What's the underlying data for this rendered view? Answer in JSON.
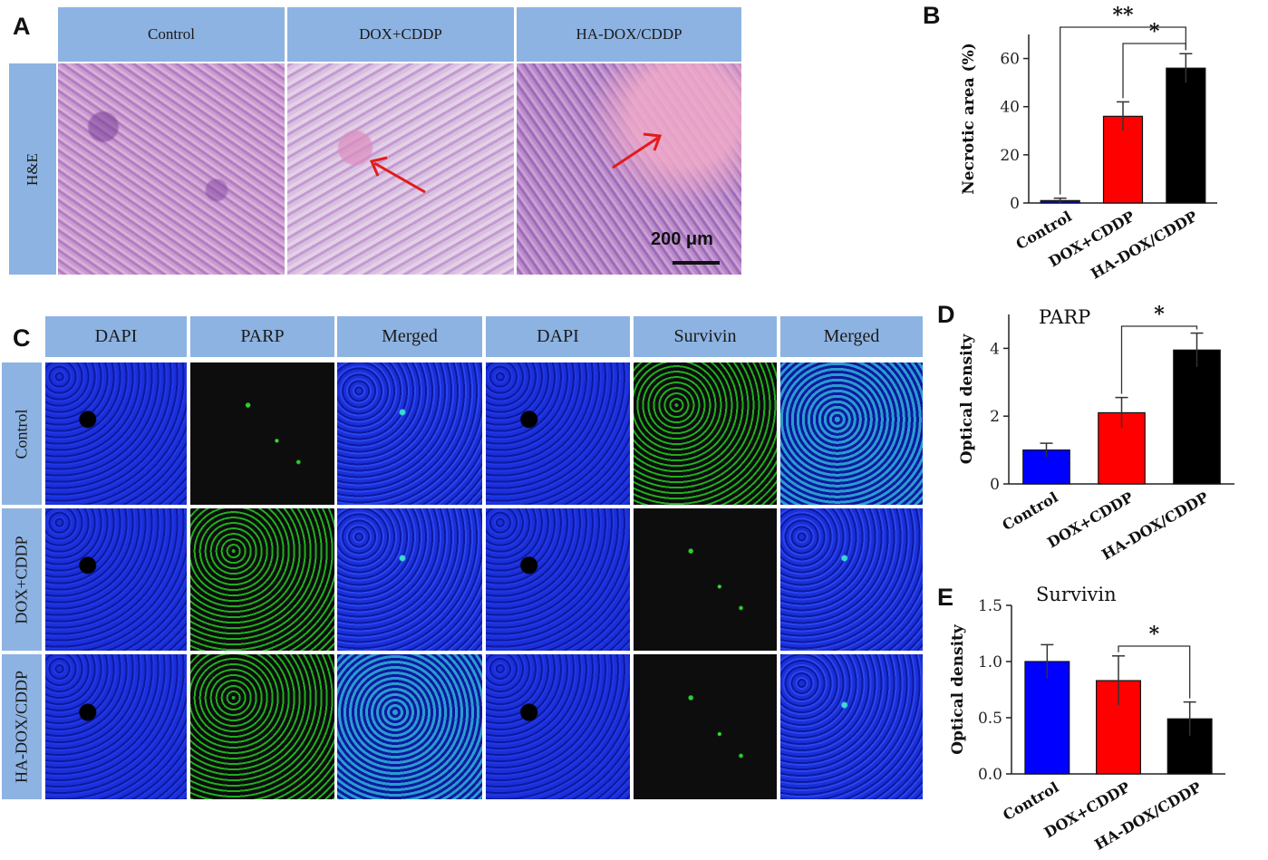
{
  "panel_a": {
    "letter": "A",
    "columns": [
      "Control",
      "DOX+CDDP",
      "HA-DOX/CDDP"
    ],
    "row_label": "H&E",
    "scale_bar": "200 μm"
  },
  "panel_c": {
    "letter": "C",
    "columns": [
      "DAPI",
      "PARP",
      "Merged",
      "DAPI",
      "Survivin",
      "Merged"
    ],
    "rows": [
      "Control",
      "DOX+CDDP",
      "HA-DOX/CDDP"
    ]
  },
  "colors": {
    "control": "#0000ff",
    "dox_cddp": "#ff0000",
    "ha_dox_cddp": "#000000",
    "header_bg": "#8db3e2"
  },
  "chart_data": [
    {
      "panel": "B",
      "type": "bar",
      "title": "",
      "categories": [
        "Control",
        "DOX+CDDP",
        "HA-DOX/CDDP"
      ],
      "values": [
        1,
        36,
        56
      ],
      "errors": [
        1,
        6,
        6
      ],
      "ylabel": "Necrotic area (%)",
      "xlabel": "",
      "ylim": [
        0,
        70
      ],
      "yticks": [
        "0",
        "20",
        "40",
        "60"
      ],
      "significance": [
        {
          "from": 0,
          "to": 2,
          "label": "**"
        },
        {
          "from": 1,
          "to": 2,
          "label": "*"
        }
      ]
    },
    {
      "panel": "D",
      "type": "bar",
      "title": "PARP",
      "categories": [
        "Control",
        "DOX+CDDP",
        "HA-DOX/CDDP"
      ],
      "values": [
        1.0,
        2.1,
        3.95
      ],
      "errors": [
        0.2,
        0.45,
        0.5
      ],
      "ylabel": "Optical density",
      "xlabel": "",
      "ylim": [
        0,
        5
      ],
      "yticks": [
        "0",
        "2",
        "4"
      ],
      "significance": [
        {
          "from": 1,
          "to": 2,
          "label": "*"
        }
      ]
    },
    {
      "panel": "E",
      "type": "bar",
      "title": "Survivin",
      "categories": [
        "Control",
        "DOX+CDDP",
        "HA-DOX/CDDP"
      ],
      "values": [
        1.0,
        0.83,
        0.49
      ],
      "errors": [
        0.15,
        0.22,
        0.15
      ],
      "ylabel": "Optical density",
      "xlabel": "",
      "ylim": [
        0,
        1.5
      ],
      "yticks": [
        "0.0",
        "0.5",
        "1.0",
        "1.5"
      ],
      "significance": [
        {
          "from": 1,
          "to": 2,
          "label": "*"
        }
      ]
    }
  ]
}
